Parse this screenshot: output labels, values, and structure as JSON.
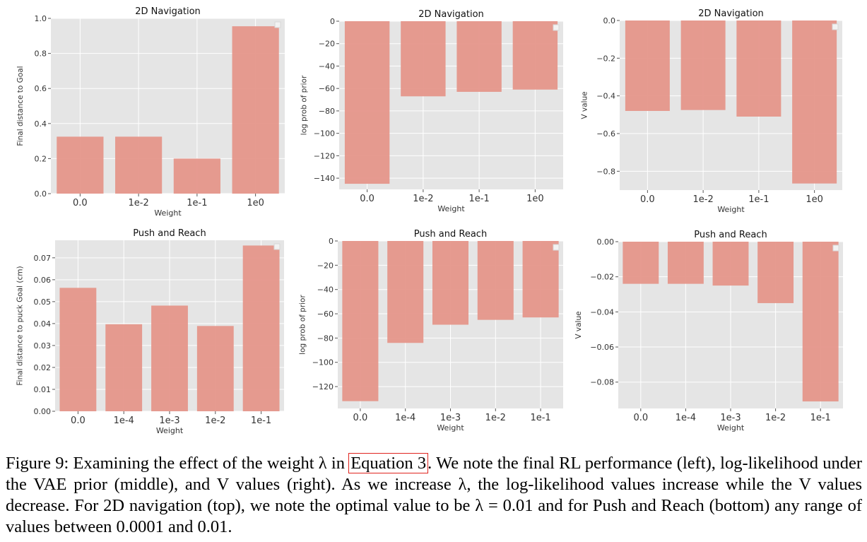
{
  "figure": {
    "chart_data": [
      {
        "id": "nav-final-distance",
        "type": "bar",
        "title": "2D Navigation",
        "xlabel": "Weight",
        "ylabel": "Final distance to Goal",
        "categories": [
          "0.0",
          "1e-2",
          "1e-1",
          "1e0"
        ],
        "values": [
          0.325,
          0.325,
          0.2,
          0.955
        ],
        "ylim": [
          0,
          1.0
        ],
        "yticks": [
          0,
          0.2,
          0.4,
          0.6,
          0.8,
          1.0
        ],
        "ytick_labels": [
          "0.0",
          "0.2",
          "0.4",
          "0.6",
          "0.8",
          "1.0"
        ],
        "grid": true,
        "legend": "top-right (empty)"
      },
      {
        "id": "nav-log-prob",
        "type": "bar",
        "title": "2D Navigation",
        "xlabel": "Weight",
        "ylabel": "log prob of prior",
        "categories": [
          "0.0",
          "1e-2",
          "1e-1",
          "1e0"
        ],
        "values": [
          -145,
          -67,
          -63,
          -61
        ],
        "ylim": [
          -150,
          0
        ],
        "yticks": [
          -140,
          -120,
          -100,
          -80,
          -60,
          -40,
          -20,
          0
        ],
        "ytick_labels": [
          "−140",
          "−120",
          "−100",
          "−80",
          "−60",
          "−40",
          "−20",
          "0"
        ],
        "grid": true,
        "legend": "top-right (empty)"
      },
      {
        "id": "nav-v-value",
        "type": "bar",
        "title": "2D Navigation",
        "xlabel": "Weight",
        "ylabel": "V value",
        "categories": [
          "0.0",
          "1e-2",
          "1e-1",
          "1e0"
        ],
        "values": [
          -0.48,
          -0.475,
          -0.51,
          -0.865
        ],
        "ylim": [
          -0.9,
          0
        ],
        "yticks": [
          -0.8,
          -0.6,
          -0.4,
          -0.2,
          0.0
        ],
        "ytick_labels": [
          "−0.8",
          "−0.6",
          "−0.4",
          "−0.2",
          "0.0"
        ],
        "grid": true,
        "legend": "top-right (empty)"
      },
      {
        "id": "push-final-distance",
        "type": "bar",
        "title": "Push and Reach",
        "xlabel": "Weight",
        "ylabel": "Final distance to puck Goal (cm)",
        "categories": [
          "0.0",
          "1e-4",
          "1e-3",
          "1e-2",
          "1e-1"
        ],
        "values": [
          0.0563,
          0.0397,
          0.0482,
          0.0389,
          0.0756
        ],
        "ylim": [
          0,
          0.078
        ],
        "yticks": [
          0,
          0.01,
          0.02,
          0.03,
          0.04,
          0.05,
          0.06,
          0.07
        ],
        "ytick_labels": [
          "0.00",
          "0.01",
          "0.02",
          "0.03",
          "0.04",
          "0.05",
          "0.06",
          "0.07"
        ],
        "grid": true,
        "legend": "top-right (empty)"
      },
      {
        "id": "push-log-prob",
        "type": "bar",
        "title": "Push and Reach",
        "xlabel": "Weight",
        "ylabel": "log prob of prior",
        "categories": [
          "0.0",
          "1e-4",
          "1e-3",
          "1e-2",
          "1e-1"
        ],
        "values": [
          -132,
          -84,
          -69,
          -65,
          -63
        ],
        "ylim": [
          -138,
          0
        ],
        "yticks": [
          -120,
          -100,
          -80,
          -60,
          -40,
          -20,
          0
        ],
        "ytick_labels": [
          "−120",
          "−100",
          "−80",
          "−60",
          "−40",
          "−20",
          "0"
        ],
        "grid": true,
        "legend": "top-right (empty)"
      },
      {
        "id": "push-v-value",
        "type": "bar",
        "title": "Push and Reach",
        "xlabel": "Weight",
        "ylabel": "V value",
        "categories": [
          "0.0",
          "1e-4",
          "1e-3",
          "1e-2",
          "1e-1"
        ],
        "values": [
          -0.024,
          -0.024,
          -0.025,
          -0.035,
          -0.091
        ],
        "ylim": [
          -0.095,
          0
        ],
        "yticks": [
          -0.08,
          -0.06,
          -0.04,
          -0.02,
          0.0
        ],
        "ytick_labels": [
          "−0.08",
          "−0.06",
          "−0.04",
          "−0.02",
          "0.00"
        ],
        "grid": true,
        "legend": "top-right (empty)"
      }
    ]
  },
  "caption": {
    "label": "Figure 9:",
    "text_before_ref": "Examining the effect of the weight λ in",
    "ref": "Equation 3",
    "text_after_ref": ". We note the final RL performance (left), log-likelihood under the VAE prior (middle), and V values (right). As we increase λ, the log-likelihood values increase while the V values decrease. For 2D navigation (top), we note the optimal value to be λ = 0.01 and for Push and Reach (bottom) any range of values between 0.0001 and 0.01."
  },
  "colors": {
    "bar": "#e5968a",
    "plot_background": "#e5e5e5",
    "grid": "#ffffff",
    "text": "#333333",
    "ref_box": "#e0241f"
  }
}
